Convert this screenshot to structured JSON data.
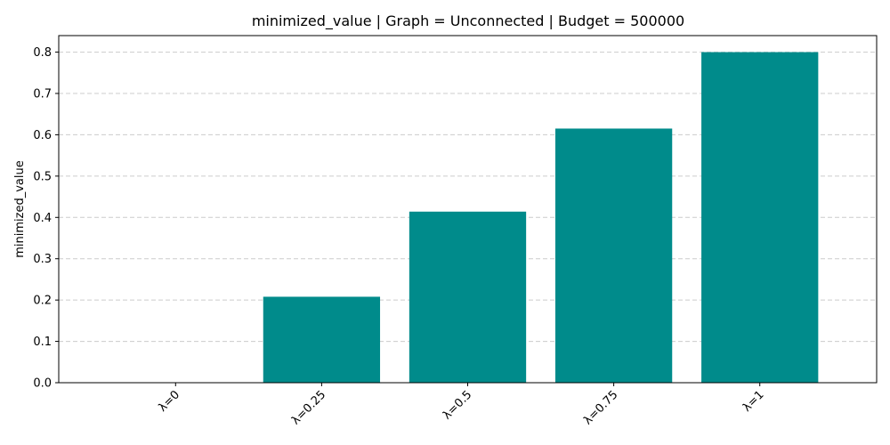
{
  "chart_data": {
    "type": "bar",
    "title": "minimized_value | Graph = Unconnected | Budget = 500000",
    "xlabel": "",
    "ylabel": "minimized_value",
    "categories": [
      "λ=0",
      "λ=0.25",
      "λ=0.5",
      "λ=0.75",
      "λ=1"
    ],
    "values": [
      0.0,
      0.208,
      0.414,
      0.615,
      0.8
    ],
    "ylim": [
      0,
      0.84
    ],
    "yticks": [
      "0.0",
      "0.1",
      "0.2",
      "0.3",
      "0.4",
      "0.5",
      "0.6",
      "0.7",
      "0.8"
    ],
    "grid": "horizontal dashed",
    "bar_color": "#008b8b"
  }
}
